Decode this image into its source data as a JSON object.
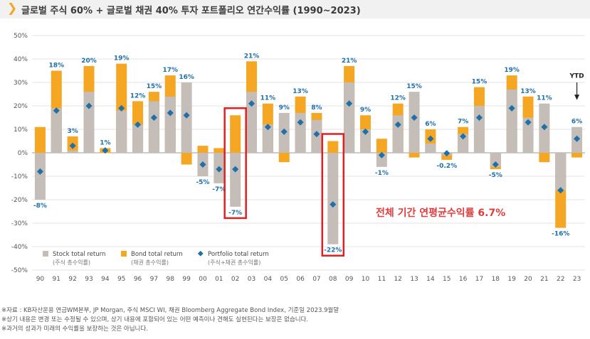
{
  "header": {
    "chevron": "❯",
    "title": "글로벌 주식 60% + 글로벌 채권 40% 투자 포트폴리오 연간수익률 (1990~2023)"
  },
  "chart_data": {
    "type": "bar",
    "title": "글로벌 주식 60% + 글로벌 채권 40% 투자 포트폴리오 연간수익률 (1990~2023)",
    "categories": [
      "90",
      "91",
      "92",
      "93",
      "94",
      "95",
      "96",
      "97",
      "98",
      "99",
      "00",
      "01",
      "02",
      "03",
      "04",
      "05",
      "06",
      "07",
      "08",
      "09",
      "10",
      "11",
      "12",
      "13",
      "14",
      "15",
      "16",
      "17",
      "18",
      "19",
      "20",
      "21",
      "22",
      "23"
    ],
    "ylim": [
      -50,
      50
    ],
    "yticks": [
      -50,
      -40,
      -30,
      -20,
      -10,
      0,
      10,
      20,
      30,
      40,
      50
    ],
    "ytick_labels": [
      "-50%",
      "-40%",
      "-30%",
      "-20%",
      "-10%",
      "0%",
      "10%",
      "20%",
      "30%",
      "40%",
      "50%"
    ],
    "series": [
      {
        "name": "Stock total return",
        "name_kr": "(주식 총수익률)",
        "color": "#c4bdb8",
        "values": [
          -20,
          19,
          1,
          26,
          0,
          18,
          12,
          22,
          24,
          30,
          -10,
          -13,
          -23,
          26,
          12,
          17,
          17,
          14,
          -39,
          30,
          10,
          -6,
          16,
          26,
          4,
          -1,
          8,
          20,
          -6,
          27,
          15,
          21,
          -16,
          11
        ]
      },
      {
        "name": "Bond total return",
        "name_kr": "(채권 총수익률)",
        "color": "#f5a623",
        "values": [
          11,
          35,
          7,
          37,
          2,
          38,
          22,
          26,
          33,
          -5,
          3,
          2,
          16,
          39,
          21,
          -4,
          24,
          17,
          5,
          37,
          16,
          6,
          21,
          -2,
          10,
          -3,
          11,
          28,
          -7,
          33,
          24,
          -4,
          -32,
          -2
        ]
      },
      {
        "name": "Portfolio total return",
        "name_kr": "(주식+채권 총수익률)",
        "color": "#1f6fa8",
        "values": [
          -8,
          18,
          3,
          20,
          1,
          19,
          12,
          15,
          17,
          16,
          -5,
          -7,
          -7,
          21,
          11,
          9,
          13,
          8,
          -22,
          21,
          9,
          -1,
          12,
          15,
          6,
          -0.2,
          7,
          15,
          -5,
          19,
          13,
          11,
          -16,
          6
        ]
      }
    ],
    "data_labels": [
      "-8%",
      "18%",
      "3%",
      "20%",
      "1%",
      "19%",
      "12%",
      "15%",
      "17%",
      "16%",
      "-5%",
      "-7%",
      "-7%",
      "21%",
      "11%",
      "9%",
      "13%",
      "8%",
      "-22%",
      "21%",
      "9%",
      "-1%",
      "12%",
      "15%",
      "6%",
      "-0.2%",
      "7%",
      "15%",
      "-5%",
      "19%",
      "13%",
      "11%",
      "-16%",
      "6%"
    ],
    "highlighted": [
      "02",
      "08"
    ],
    "ytd_marker": "YTD",
    "annotation": "전체 기간 연평균수익률  6.7%",
    "annotation_color": "#e03c3c",
    "highlight_color": "#e02020"
  },
  "footnotes": [
    "※자료 : KB자산운용 연금WM본부, JP Morgan, 주식 MSCI WI, 채권 Bloomberg Aggregate Bond Index, 기준일 2023.9월말",
    "※상기 내용은 변경 또는 수정될 수 있으며, 상기 내용에 포함되어 있는 어떤 예측이나 견해도 실현된다는 보장은 없습니다.",
    "※과거의 성과가 미래의 수익률을 보장하는 것은 아닙니다."
  ]
}
